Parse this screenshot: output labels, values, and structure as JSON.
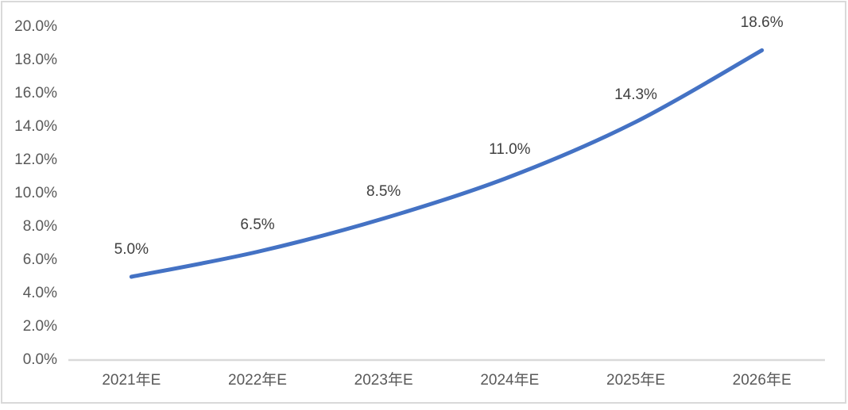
{
  "chart_data": {
    "type": "line",
    "categories": [
      "2021年E",
      "2022年E",
      "2023年E",
      "2024年E",
      "2025年E",
      "2026年E"
    ],
    "values": [
      5.0,
      6.5,
      8.5,
      11.0,
      14.3,
      18.6
    ],
    "data_labels": [
      "5.0%",
      "6.5%",
      "8.5%",
      "11.0%",
      "14.3%",
      "18.6%"
    ],
    "y_ticks": [
      "0.0%",
      "2.0%",
      "4.0%",
      "6.0%",
      "8.0%",
      "10.0%",
      "12.0%",
      "14.0%",
      "16.0%",
      "18.0%",
      "20.0%"
    ],
    "ylim": [
      0,
      20
    ],
    "title": "",
    "xlabel": "",
    "ylabel": "",
    "grid": false,
    "legend": "none",
    "smooth_line": true,
    "colors": {
      "line": "#4472C4",
      "axis_line": "#D9D9D9",
      "tick_text": "#595959",
      "data_label_text": "#404040",
      "frame_border": "#D9D9D9",
      "background": "#FFFFFF"
    }
  }
}
